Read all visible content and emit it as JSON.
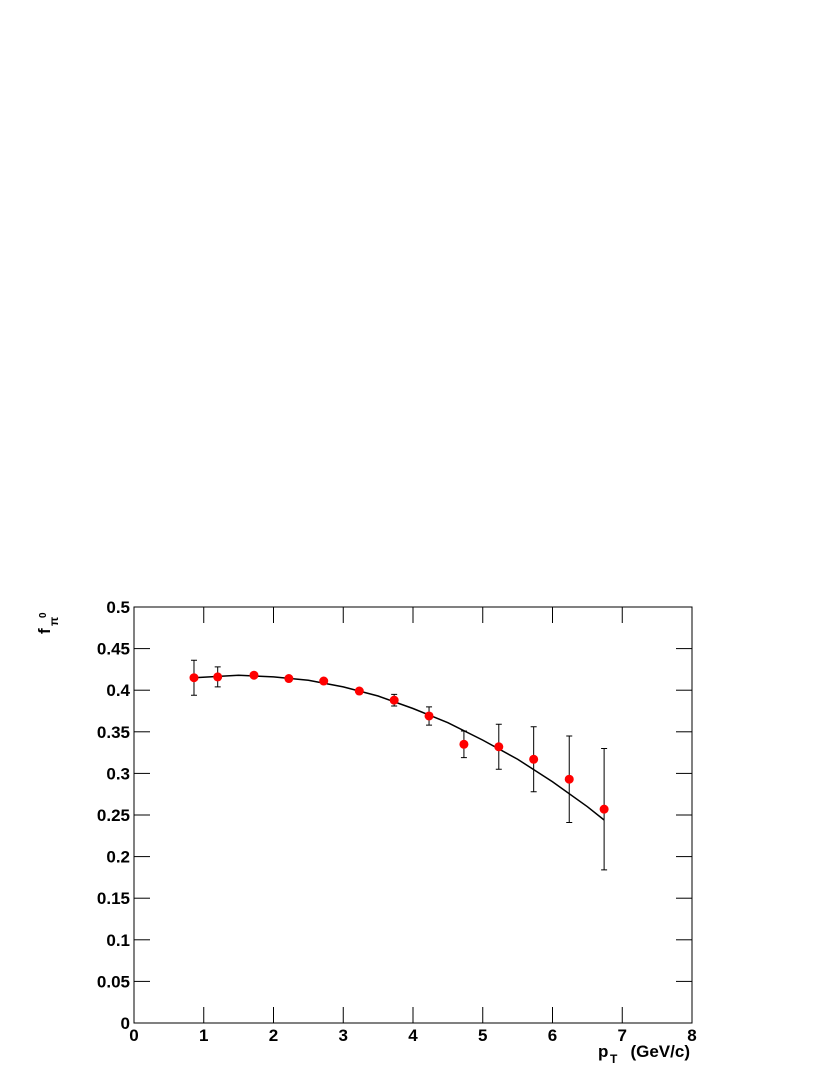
{
  "chart_data": {
    "type": "scatter",
    "x": [
      0.86,
      1.2,
      1.72,
      2.22,
      2.72,
      3.23,
      3.73,
      4.23,
      4.73,
      5.23,
      5.73,
      6.24,
      6.74
    ],
    "values": [
      0.415,
      0.416,
      0.418,
      0.414,
      0.411,
      0.399,
      0.388,
      0.369,
      0.335,
      0.332,
      0.317,
      0.293,
      0.257
    ],
    "errors": [
      0.021,
      0.012,
      0.002,
      0.002,
      0.002,
      0.002,
      0.007,
      0.011,
      0.016,
      0.027,
      0.039,
      0.052,
      0.073
    ],
    "color": "#ff0000",
    "fit": {
      "x": [
        0.86,
        1.5,
        2,
        2.5,
        3,
        3.5,
        4,
        4.5,
        5,
        5.5,
        6,
        6.5,
        6.74
      ],
      "values": [
        0.415,
        0.418,
        0.416,
        0.412,
        0.404,
        0.393,
        0.378,
        0.361,
        0.34,
        0.317,
        0.29,
        0.26,
        0.244
      ],
      "color": "#000000"
    },
    "xlim": [
      0,
      8
    ],
    "xticks": [
      0,
      1,
      2,
      3,
      4,
      5,
      6,
      7,
      8
    ],
    "ylim": [
      0,
      0.5
    ],
    "yticks": [
      0,
      0.05,
      0.1,
      0.15,
      0.2,
      0.25,
      0.3,
      0.35,
      0.4,
      0.45,
      0.5
    ],
    "xlabel": {
      "main": "p",
      "sub": "T",
      "unit": "(GeV/c)"
    },
    "ylabel": {
      "main": "f",
      "sub": "π",
      "sup": "0"
    }
  }
}
